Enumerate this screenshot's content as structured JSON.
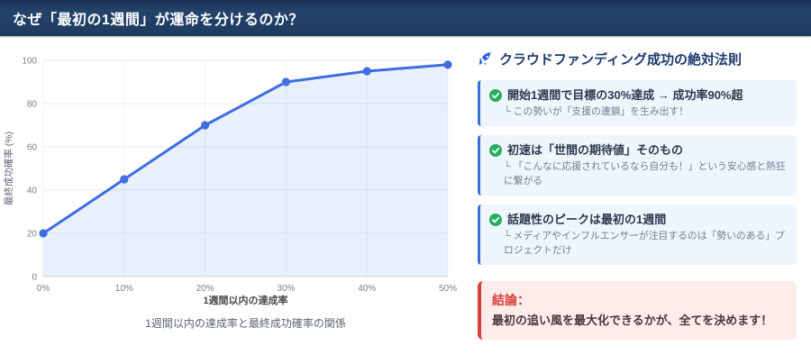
{
  "header": {
    "title": "なぜ「最初の1週間」が運命を分けるのか？"
  },
  "chart_data": {
    "type": "line",
    "categories": [
      "0%",
      "10%",
      "20%",
      "30%",
      "40%",
      "50%"
    ],
    "values": [
      20,
      45,
      70,
      90,
      95,
      98
    ],
    "title": "",
    "xlabel": "1週間以内の達成率",
    "ylabel": "最終成功確率 (%)",
    "ylim": [
      0,
      100
    ],
    "yticks": [
      0,
      20,
      40,
      60,
      80,
      100
    ],
    "caption": "1週間以内の達成率と最終成功確率の関係",
    "grid": true,
    "legend": "none",
    "line_color": "#3e6ee0",
    "area_color": "rgba(62,110,224,0.11)",
    "marker_radius": 4.6
  },
  "panel": {
    "icon": "rocket-icon",
    "title": "クラウドファンディング成功の絶対法則",
    "items": [
      {
        "icon": "check-circle-icon",
        "title": "開始1週間で目標の30%達成 → 成功率90%超",
        "sub": "└ この勢いが「支援の連鎖」を生み出す！"
      },
      {
        "icon": "check-circle-icon",
        "title": "初速は「世間の期待値」そのもの",
        "sub": "└ 「こんなに応援されているなら自分も！」という安心感と熱狂に繋がる"
      },
      {
        "icon": "check-circle-icon",
        "title": "話題性のピークは最初の1週間",
        "sub": "└ メディアやインフルエンサーが注目するのは「勢いのある」プロジェクトだけ"
      }
    ],
    "conclusion": {
      "label": "結論：",
      "text": "最初の追い風を最大化できるかが、全てを決めます！"
    }
  },
  "colors": {
    "header_bg": "#1e3a5f",
    "panel_title": "#1e3a6e",
    "item_bg": "#eef5fc",
    "item_border": "#3a6fd8",
    "check_green": "#27ae60",
    "rocket_blue": "#2d5bd7",
    "conclusion_bg": "#fdecea",
    "conclusion_border": "#d8403a",
    "line_blue": "#3e6ee0"
  }
}
